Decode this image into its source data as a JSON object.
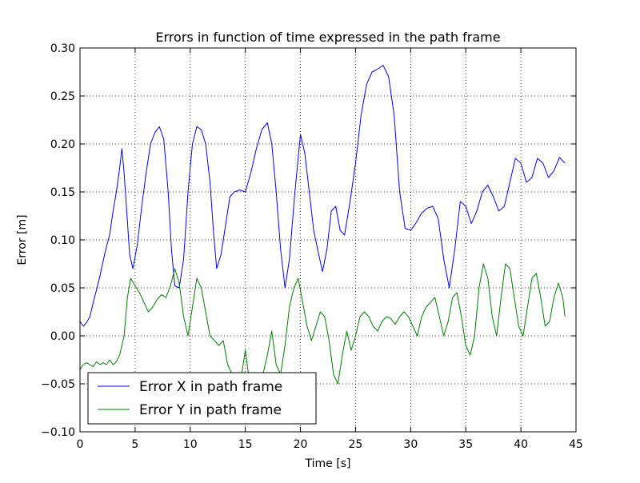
{
  "chart_data": {
    "type": "line",
    "title": "Errors in function of time expressed in the path frame",
    "xlabel": "Time [s]",
    "ylabel": "Error [m]",
    "xlim": [
      0,
      45
    ],
    "ylim": [
      -0.1,
      0.3
    ],
    "xticks": [
      0,
      5,
      10,
      15,
      20,
      25,
      30,
      35,
      40,
      45
    ],
    "xtick_labels": [
      "0",
      "5",
      "10",
      "15",
      "20",
      "25",
      "30",
      "35",
      "40",
      "45"
    ],
    "yticks": [
      -0.1,
      -0.05,
      0.0,
      0.05,
      0.1,
      0.15,
      0.2,
      0.25,
      0.3
    ],
    "ytick_labels": [
      "−0.10",
      "−0.05",
      "0.00",
      "0.05",
      "0.10",
      "0.15",
      "0.20",
      "0.25",
      "0.30"
    ],
    "grid": true,
    "legend_position": "lower-left",
    "series": [
      {
        "name": "Error X in path frame",
        "color": "#0000ff",
        "points": [
          [
            0.0,
            0.015
          ],
          [
            0.3,
            0.01
          ],
          [
            0.6,
            0.014
          ],
          [
            0.9,
            0.02
          ],
          [
            1.2,
            0.035
          ],
          [
            1.5,
            0.048
          ],
          [
            1.8,
            0.062
          ],
          [
            2.1,
            0.078
          ],
          [
            2.4,
            0.093
          ],
          [
            2.7,
            0.106
          ],
          [
            3.0,
            0.13
          ],
          [
            3.3,
            0.15
          ],
          [
            3.6,
            0.175
          ],
          [
            3.8,
            0.195
          ],
          [
            4.0,
            0.17
          ],
          [
            4.3,
            0.12
          ],
          [
            4.5,
            0.085
          ],
          [
            4.8,
            0.07
          ],
          [
            5.2,
            0.095
          ],
          [
            5.6,
            0.135
          ],
          [
            6.0,
            0.17
          ],
          [
            6.4,
            0.2
          ],
          [
            6.8,
            0.212
          ],
          [
            7.2,
            0.218
          ],
          [
            7.6,
            0.205
          ],
          [
            8.0,
            0.15
          ],
          [
            8.3,
            0.09
          ],
          [
            8.6,
            0.052
          ],
          [
            9.0,
            0.05
          ],
          [
            9.4,
            0.08
          ],
          [
            9.8,
            0.15
          ],
          [
            10.2,
            0.2
          ],
          [
            10.6,
            0.218
          ],
          [
            11.0,
            0.215
          ],
          [
            11.4,
            0.2
          ],
          [
            11.8,
            0.16
          ],
          [
            12.1,
            0.11
          ],
          [
            12.4,
            0.07
          ],
          [
            12.8,
            0.085
          ],
          [
            13.2,
            0.115
          ],
          [
            13.6,
            0.145
          ],
          [
            14.0,
            0.15
          ],
          [
            14.5,
            0.152
          ],
          [
            15.0,
            0.15
          ],
          [
            15.5,
            0.17
          ],
          [
            16.0,
            0.195
          ],
          [
            16.5,
            0.215
          ],
          [
            17.0,
            0.222
          ],
          [
            17.4,
            0.2
          ],
          [
            17.8,
            0.15
          ],
          [
            18.2,
            0.09
          ],
          [
            18.6,
            0.05
          ],
          [
            19.0,
            0.08
          ],
          [
            19.5,
            0.15
          ],
          [
            20.0,
            0.21
          ],
          [
            20.4,
            0.19
          ],
          [
            20.8,
            0.15
          ],
          [
            21.2,
            0.11
          ],
          [
            21.6,
            0.088
          ],
          [
            22.0,
            0.067
          ],
          [
            22.4,
            0.09
          ],
          [
            22.8,
            0.13
          ],
          [
            23.2,
            0.135
          ],
          [
            23.6,
            0.11
          ],
          [
            24.0,
            0.105
          ],
          [
            24.5,
            0.14
          ],
          [
            25.0,
            0.18
          ],
          [
            25.5,
            0.23
          ],
          [
            26.0,
            0.262
          ],
          [
            26.5,
            0.275
          ],
          [
            27.0,
            0.278
          ],
          [
            27.5,
            0.282
          ],
          [
            28.0,
            0.27
          ],
          [
            28.5,
            0.23
          ],
          [
            29.0,
            0.15
          ],
          [
            29.5,
            0.112
          ],
          [
            30.0,
            0.11
          ],
          [
            30.5,
            0.118
          ],
          [
            31.0,
            0.128
          ],
          [
            31.5,
            0.133
          ],
          [
            32.0,
            0.135
          ],
          [
            32.5,
            0.122
          ],
          [
            33.0,
            0.08
          ],
          [
            33.5,
            0.05
          ],
          [
            34.0,
            0.09
          ],
          [
            34.5,
            0.14
          ],
          [
            35.0,
            0.135
          ],
          [
            35.5,
            0.117
          ],
          [
            36.0,
            0.13
          ],
          [
            36.5,
            0.15
          ],
          [
            37.0,
            0.157
          ],
          [
            37.5,
            0.145
          ],
          [
            38.0,
            0.13
          ],
          [
            38.5,
            0.135
          ],
          [
            39.0,
            0.16
          ],
          [
            39.5,
            0.185
          ],
          [
            40.0,
            0.18
          ],
          [
            40.5,
            0.16
          ],
          [
            41.0,
            0.165
          ],
          [
            41.5,
            0.185
          ],
          [
            42.0,
            0.18
          ],
          [
            42.5,
            0.165
          ],
          [
            43.0,
            0.172
          ],
          [
            43.5,
            0.186
          ],
          [
            44.0,
            0.18
          ]
        ]
      },
      {
        "name": "Error Y in path frame",
        "color": "#008000",
        "points": [
          [
            0.0,
            -0.035
          ],
          [
            0.3,
            -0.03
          ],
          [
            0.6,
            -0.028
          ],
          [
            0.9,
            -0.03
          ],
          [
            1.2,
            -0.032
          ],
          [
            1.5,
            -0.027
          ],
          [
            1.8,
            -0.03
          ],
          [
            2.1,
            -0.028
          ],
          [
            2.4,
            -0.03
          ],
          [
            2.7,
            -0.025
          ],
          [
            3.0,
            -0.03
          ],
          [
            3.3,
            -0.027
          ],
          [
            3.6,
            -0.02
          ],
          [
            4.0,
            0.0
          ],
          [
            4.3,
            0.04
          ],
          [
            4.6,
            0.06
          ],
          [
            5.0,
            0.052
          ],
          [
            5.4,
            0.045
          ],
          [
            5.8,
            0.035
          ],
          [
            6.2,
            0.025
          ],
          [
            6.6,
            0.03
          ],
          [
            7.0,
            0.038
          ],
          [
            7.4,
            0.043
          ],
          [
            7.8,
            0.04
          ],
          [
            8.2,
            0.052
          ],
          [
            8.6,
            0.07
          ],
          [
            9.0,
            0.055
          ],
          [
            9.4,
            0.02
          ],
          [
            9.8,
            0.0
          ],
          [
            10.2,
            0.03
          ],
          [
            10.6,
            0.06
          ],
          [
            11.0,
            0.05
          ],
          [
            11.4,
            0.025
          ],
          [
            11.8,
            0.0
          ],
          [
            12.2,
            -0.005
          ],
          [
            12.6,
            -0.01
          ],
          [
            13.0,
            -0.005
          ],
          [
            13.4,
            -0.03
          ],
          [
            13.8,
            -0.04
          ],
          [
            14.2,
            -0.05
          ],
          [
            14.6,
            -0.045
          ],
          [
            15.0,
            -0.015
          ],
          [
            15.4,
            -0.05
          ],
          [
            15.8,
            -0.08
          ],
          [
            16.2,
            -0.06
          ],
          [
            16.6,
            -0.04
          ],
          [
            17.0,
            -0.02
          ],
          [
            17.4,
            0.005
          ],
          [
            17.8,
            -0.03
          ],
          [
            18.2,
            -0.04
          ],
          [
            18.6,
            -0.01
          ],
          [
            19.0,
            0.03
          ],
          [
            19.4,
            0.05
          ],
          [
            19.8,
            0.06
          ],
          [
            20.2,
            0.035
          ],
          [
            20.6,
            0.01
          ],
          [
            21.0,
            -0.005
          ],
          [
            21.4,
            0.01
          ],
          [
            21.8,
            0.025
          ],
          [
            22.2,
            0.02
          ],
          [
            22.6,
            -0.005
          ],
          [
            23.0,
            -0.04
          ],
          [
            23.4,
            -0.05
          ],
          [
            23.8,
            -0.02
          ],
          [
            24.2,
            0.005
          ],
          [
            24.6,
            -0.015
          ],
          [
            25.0,
            0.0
          ],
          [
            25.4,
            0.02
          ],
          [
            25.8,
            0.025
          ],
          [
            26.2,
            0.02
          ],
          [
            26.6,
            0.01
          ],
          [
            27.0,
            0.005
          ],
          [
            27.4,
            0.015
          ],
          [
            27.8,
            0.02
          ],
          [
            28.2,
            0.018
          ],
          [
            28.6,
            0.012
          ],
          [
            29.0,
            0.02
          ],
          [
            29.4,
            0.025
          ],
          [
            29.8,
            0.02
          ],
          [
            30.2,
            0.01
          ],
          [
            30.6,
            0.0
          ],
          [
            31.0,
            0.02
          ],
          [
            31.4,
            0.03
          ],
          [
            31.8,
            0.035
          ],
          [
            32.2,
            0.04
          ],
          [
            32.6,
            0.02
          ],
          [
            33.0,
            0.0
          ],
          [
            33.4,
            0.015
          ],
          [
            33.8,
            0.04
          ],
          [
            34.2,
            0.045
          ],
          [
            34.6,
            0.02
          ],
          [
            35.0,
            -0.01
          ],
          [
            35.4,
            -0.02
          ],
          [
            35.8,
            0.0
          ],
          [
            36.2,
            0.05
          ],
          [
            36.6,
            0.075
          ],
          [
            37.0,
            0.06
          ],
          [
            37.4,
            0.02
          ],
          [
            37.8,
            0.0
          ],
          [
            38.2,
            0.04
          ],
          [
            38.6,
            0.075
          ],
          [
            39.0,
            0.07
          ],
          [
            39.4,
            0.04
          ],
          [
            39.8,
            0.01
          ],
          [
            40.2,
            0.0
          ],
          [
            40.6,
            0.03
          ],
          [
            41.0,
            0.06
          ],
          [
            41.4,
            0.065
          ],
          [
            41.8,
            0.04
          ],
          [
            42.2,
            0.01
          ],
          [
            42.6,
            0.015
          ],
          [
            43.0,
            0.04
          ],
          [
            43.4,
            0.055
          ],
          [
            43.8,
            0.04
          ],
          [
            44.0,
            0.02
          ]
        ]
      }
    ]
  }
}
